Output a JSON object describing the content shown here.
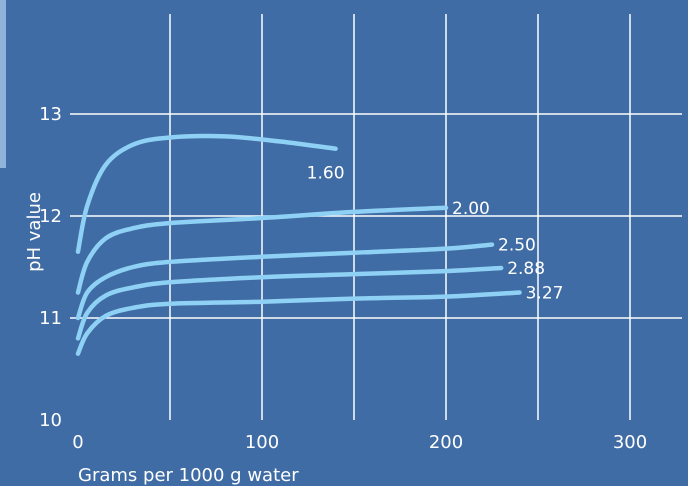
{
  "chart_data": {
    "type": "line",
    "title": "",
    "xlabel": "Grams per 1000 g water",
    "ylabel": "pH value",
    "xlim": [
      0,
      330
    ],
    "ylim": [
      10,
      14
    ],
    "x_ticks": [
      "0",
      "100",
      "200",
      "300"
    ],
    "y_ticks": [
      "10",
      "11",
      "12",
      "13"
    ],
    "grid": true,
    "colors": {
      "background": "#3f6ca4",
      "line": "#8fd0f5",
      "grid": "#ffffff",
      "text": "#ffffff"
    },
    "series": [
      {
        "name": "1.60",
        "x": [
          0,
          5,
          15,
          30,
          50,
          80,
          110,
          140
        ],
        "y": [
          11.65,
          12.1,
          12.5,
          12.7,
          12.77,
          12.78,
          12.73,
          12.66
        ]
      },
      {
        "name": "2.00",
        "x": [
          0,
          5,
          15,
          30,
          50,
          100,
          150,
          200
        ],
        "y": [
          11.25,
          11.55,
          11.78,
          11.88,
          11.93,
          11.98,
          12.04,
          12.08
        ]
      },
      {
        "name": "2.50",
        "x": [
          0,
          5,
          15,
          30,
          50,
          100,
          150,
          200,
          225
        ],
        "y": [
          11.0,
          11.25,
          11.4,
          11.5,
          11.55,
          11.6,
          11.64,
          11.68,
          11.72
        ]
      },
      {
        "name": "2.88",
        "x": [
          0,
          5,
          15,
          30,
          50,
          100,
          150,
          200,
          230
        ],
        "y": [
          10.8,
          11.05,
          11.22,
          11.3,
          11.35,
          11.4,
          11.43,
          11.46,
          11.49
        ]
      },
      {
        "name": "3.27",
        "x": [
          0,
          5,
          15,
          30,
          50,
          100,
          150,
          200,
          240
        ],
        "y": [
          10.65,
          10.85,
          11.02,
          11.1,
          11.14,
          11.16,
          11.19,
          11.21,
          11.25
        ]
      }
    ]
  }
}
